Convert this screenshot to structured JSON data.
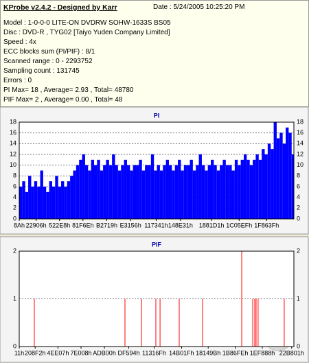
{
  "header": {
    "title": "KProbe v2.4.2 - Designed by Karr",
    "date": "Date : 5/24/2005 10:25:20 PM",
    "lines": [
      "Model : 1-0-0-0 LITE-ON DVDRW SOHW-1633S BS05",
      "Disc : DVD-R , TYG02 [Taiyo Yuden Company Limited]",
      "Speed : 4x",
      "ECC blocks sum (PI/PIF) : 8/1",
      "Scanned range : 0 - 2293752",
      "Sampling count : 131745",
      "Errors : 0",
      "PI Max= 18 , Average= 2.93 , Total= 48780",
      "PIF Max= 2 , Average= 0.00 , Total= 48"
    ]
  },
  "chart_data": [
    {
      "type": "bar",
      "title": "PI",
      "color": "#0000ff",
      "grid": true,
      "x": [
        0,
        25000,
        50000,
        75000,
        100000,
        125000,
        150000,
        175000,
        200000,
        225000,
        250000,
        275000,
        300000,
        325000,
        350000,
        375000,
        400000,
        425000,
        450000,
        475000,
        500000,
        525000,
        550000,
        575000,
        600000,
        625000,
        650000,
        675000,
        700000,
        725000,
        750000,
        775000,
        800000,
        825000,
        850000,
        875000,
        900000,
        925000,
        950000,
        975000,
        1000000,
        1025000,
        1050000,
        1075000,
        1100000,
        1125000,
        1150000,
        1175000,
        1200000,
        1225000,
        1250000,
        1275000,
        1300000,
        1325000,
        1350000,
        1375000,
        1400000,
        1425000,
        1450000,
        1475000,
        1500000,
        1525000,
        1550000,
        1575000,
        1600000,
        1625000,
        1650000,
        1675000,
        1700000,
        1725000,
        1750000,
        1775000,
        1800000,
        1825000,
        1850000,
        1875000,
        1900000,
        1925000,
        1950000,
        1975000,
        2000000,
        2025000,
        2050000,
        2075000,
        2100000,
        2125000,
        2150000,
        2175000,
        2200000,
        2225000,
        2250000,
        2275000
      ],
      "values": [
        6,
        7,
        5,
        8,
        6,
        7,
        6,
        9,
        6,
        5,
        7,
        6,
        8,
        6,
        7,
        6,
        7,
        8,
        9,
        10,
        11,
        12,
        10,
        9,
        11,
        10,
        11,
        9,
        10,
        11,
        10,
        12,
        10,
        9,
        10,
        11,
        10,
        9,
        10,
        10,
        11,
        9,
        10,
        10,
        12,
        9,
        10,
        9,
        10,
        11,
        10,
        9,
        10,
        11,
        9,
        10,
        10,
        11,
        9,
        10,
        12,
        10,
        9,
        10,
        11,
        10,
        9,
        10,
        11,
        10,
        10,
        9,
        11,
        10,
        11,
        12,
        11,
        10,
        11,
        12,
        11,
        13,
        12,
        14,
        13,
        18,
        15,
        16,
        14,
        17,
        16,
        12
      ],
      "xlim": [
        0,
        2293752
      ],
      "xticks": [
        {
          "value": 138,
          "label": "8Ah"
        },
        {
          "value": 141574,
          "label": "22906h"
        },
        {
          "value": 336616,
          "label": "522E8h"
        },
        {
          "value": 532334,
          "label": "81F6Eh"
        },
        {
          "value": 730905,
          "label": "B2719h"
        },
        {
          "value": 930134,
          "label": "E3156h"
        },
        {
          "value": 1143617,
          "label": "117341h"
        },
        {
          "value": 1347121,
          "label": "148E31h"
        },
        {
          "value": 1606097,
          "label": "1881D1h"
        },
        {
          "value": 1836527,
          "label": "1C05EFh"
        },
        {
          "value": 2065983,
          "label": "1F863Fh"
        }
      ],
      "ylim": [
        0,
        18
      ],
      "yticks": [
        0,
        2,
        4,
        6,
        8,
        10,
        12,
        14,
        16,
        18
      ]
    },
    {
      "type": "stem",
      "title": "PIF",
      "color": "#ff0000",
      "grid": true,
      "x": [
        126000,
        883000,
        1021000,
        1141000,
        1176000,
        1336000,
        1531000,
        1858000,
        1950000,
        1967000,
        1978000,
        1995000,
        2213000
      ],
      "values": [
        1,
        1,
        1,
        1,
        1,
        1,
        1,
        2,
        1,
        1,
        1,
        1,
        1
      ],
      "xlim": [
        0,
        2293752
      ],
      "xticks": [
        {
          "value": 17,
          "label": "11h"
        },
        {
          "value": 133362,
          "label": "208F2h"
        },
        {
          "value": 323079,
          "label": "4EE07h"
        },
        {
          "value": 516104,
          "label": "7E008h"
        },
        {
          "value": 711424,
          "label": "ADB00h"
        },
        {
          "value": 914836,
          "label": "DF594h"
        },
        {
          "value": 1126767,
          "label": "11316Fh"
        },
        {
          "value": 1355807,
          "label": "14B01Fh"
        },
        {
          "value": 1578139,
          "label": "18149Bh"
        },
        {
          "value": 1804030,
          "label": "1B86FEh"
        },
        {
          "value": 2029704,
          "label": "1EF888h"
        },
        {
          "value": 2275329,
          "label": "22B801h"
        }
      ],
      "ylim": [
        0,
        2
      ],
      "yticks": [
        0,
        1,
        2
      ]
    }
  ]
}
